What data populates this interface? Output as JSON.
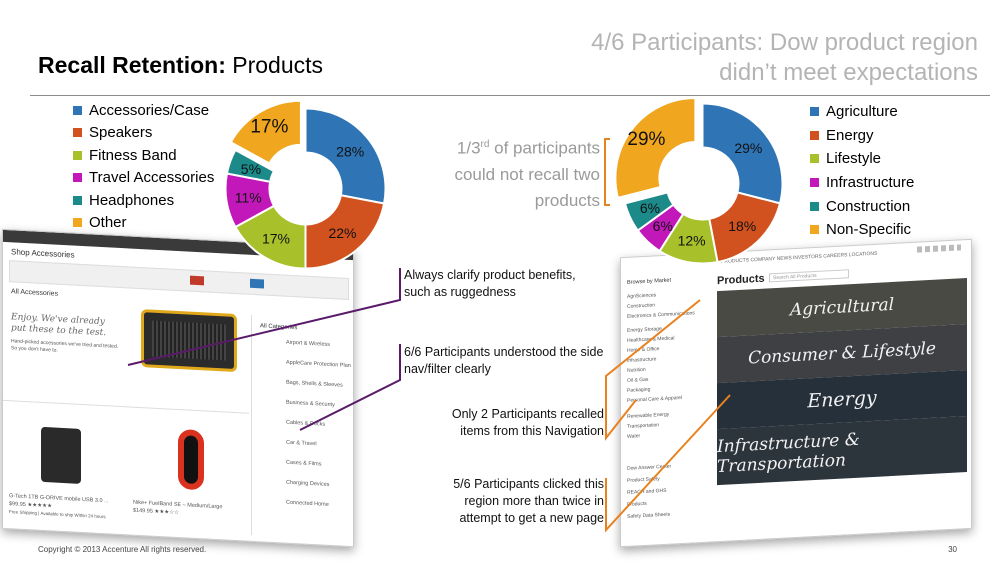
{
  "slide": {
    "title_bold": "Recall Retention:",
    "title_rest": " Products",
    "headline": "4/6 Participants: Dow product region didn’t meet expectations",
    "recall_callout_pre": "1/3",
    "recall_callout_sup": "rd",
    "recall_callout_post": " of participants could not recall two products",
    "notes": {
      "benefits": "Always clarify product benefits, such as ruggedness",
      "sidenav": "6/6 Participants understood the side nav/filter clearly",
      "navigation": "Only 2 Participants recalled items from this Navigation",
      "clicked": "5/6 Participants clicked this region more than twice in attempt to get a new page"
    },
    "footer": "Copyright © 2013 Accenture  All rights reserved.",
    "page_number": "30"
  },
  "chart_data": [
    {
      "type": "pie",
      "categories": [
        "Accessories/Case",
        "Speakers",
        "Fitness Band",
        "Travel Accessories",
        "Headphones",
        "Other"
      ],
      "values": [
        28,
        22,
        17,
        11,
        5,
        17
      ],
      "labels": [
        "28%",
        "22%",
        "17%",
        "11%",
        "5%",
        "17%"
      ],
      "colors": [
        "#2f74b5",
        "#d2521f",
        "#a8c02a",
        "#c218b9",
        "#1d8a8a",
        "#f0a61e"
      ],
      "legend": "left"
    },
    {
      "type": "pie",
      "categories": [
        "Agriculture",
        "Energy",
        "Lifestyle",
        "Infrastructure",
        "Construction",
        "Non-Specific"
      ],
      "values": [
        29,
        18,
        12,
        6,
        6,
        29
      ],
      "labels": [
        "29%",
        "18%",
        "12%",
        "6%",
        "6%",
        "29%"
      ],
      "colors": [
        "#2f74b5",
        "#d2521f",
        "#a8c02a",
        "#c218b9",
        "#1d8a8a",
        "#f0a61e"
      ],
      "legend": "right"
    }
  ],
  "left_screenshot": {
    "header": "Shop Accessories",
    "section": "All Accessories",
    "hero_line1": "Enjoy. We've already",
    "hero_line2": "put these to the test.",
    "hero_sub": "Hand-picked accessories we've tried and tested. So you don't have to.",
    "categories_title": "All Categories",
    "categories": [
      "Airport & Wireless",
      "AppleCare Protection Plan",
      "Bags, Shells & Sleeves",
      "Business & Security",
      "Cables & Docks",
      "Car & Travel",
      "Cases & Films",
      "Charging Devices",
      "Connected Home"
    ],
    "product1": "G-Tech 1TB G-DRIVE mobile USB 3.0 ...",
    "product1_price": "$99.95 ★★★★★",
    "product1_ship": "Free Shipping | Available to ship Within 24 hours",
    "product2": "Nike+ FuelBand SE – Medium/Large",
    "product2_price": "$149.95 ★★★☆☆"
  },
  "right_screenshot": {
    "title": "Products",
    "topnav": "PRODUCTS  COMPANY  NEWS  INVESTORS  CAREERS  LOCATIONS",
    "browse_label": "Browse by Market",
    "search_placeholder": "Search All Products",
    "side_links": [
      "AgriSciences",
      "Construction",
      "Electronics & Communications",
      "Energy Storage",
      "Healthcare & Medical",
      "Home & Office",
      "Infrastructure",
      "Nutrition",
      "Oil & Gas",
      "Packaging",
      "Personal Care & Apparel",
      "Renewable Energy",
      "Transportation",
      "Water"
    ],
    "bottom_links": [
      "Dow Answer Center",
      "Product Safety",
      "REACH and GHS",
      "Products",
      "Safety Data Sheets"
    ],
    "bands": [
      "Agricultural",
      "Consumer & Lifestyle",
      "Energy",
      "Infrastructure & Transportation"
    ]
  }
}
